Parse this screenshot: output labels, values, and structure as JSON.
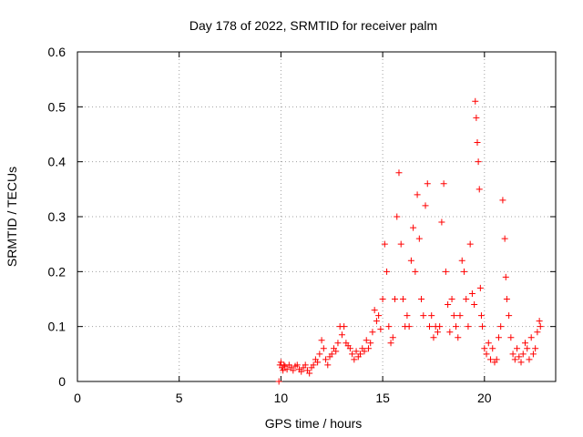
{
  "chart_data": {
    "type": "scatter",
    "title": "Day 178 of 2022, SRMTID for receiver palm",
    "xlabel": "GPS time / hours",
    "ylabel": "SRMTID / TECUs",
    "xlim": [
      0,
      23.5
    ],
    "ylim": [
      0,
      0.6
    ],
    "xticks": [
      0,
      5,
      10,
      15,
      20
    ],
    "xtick_labels": [
      "0",
      "5",
      "10",
      "15",
      "20"
    ],
    "yticks": [
      0,
      0.1,
      0.2,
      0.3,
      0.4,
      0.5,
      0.6
    ],
    "ytick_labels": [
      "0",
      "0.1",
      "0.2",
      "0.3",
      "0.4",
      "0.5",
      "0.6"
    ],
    "grid": true,
    "marker": "plus",
    "color": "#ff0000",
    "series": [
      {
        "name": "SRMTID",
        "points": [
          [
            9.9,
            0.0
          ],
          [
            9.95,
            0.03
          ],
          [
            10.0,
            0.035
          ],
          [
            10.05,
            0.025
          ],
          [
            10.1,
            0.02
          ],
          [
            10.15,
            0.03
          ],
          [
            10.2,
            0.028
          ],
          [
            10.3,
            0.022
          ],
          [
            10.4,
            0.03
          ],
          [
            10.5,
            0.025
          ],
          [
            10.6,
            0.02
          ],
          [
            10.7,
            0.028
          ],
          [
            10.8,
            0.03
          ],
          [
            10.9,
            0.022
          ],
          [
            11.0,
            0.018
          ],
          [
            11.1,
            0.025
          ],
          [
            11.2,
            0.03
          ],
          [
            11.3,
            0.02
          ],
          [
            11.4,
            0.015
          ],
          [
            11.5,
            0.025
          ],
          [
            11.6,
            0.03
          ],
          [
            11.7,
            0.04
          ],
          [
            11.8,
            0.035
          ],
          [
            11.9,
            0.05
          ],
          [
            12.0,
            0.075
          ],
          [
            12.1,
            0.06
          ],
          [
            12.2,
            0.04
          ],
          [
            12.3,
            0.03
          ],
          [
            12.4,
            0.045
          ],
          [
            12.5,
            0.05
          ],
          [
            12.6,
            0.06
          ],
          [
            12.7,
            0.055
          ],
          [
            12.8,
            0.07
          ],
          [
            12.9,
            0.1
          ],
          [
            13.0,
            0.085
          ],
          [
            13.1,
            0.1
          ],
          [
            13.2,
            0.07
          ],
          [
            13.3,
            0.065
          ],
          [
            13.4,
            0.06
          ],
          [
            13.5,
            0.05
          ],
          [
            13.6,
            0.04
          ],
          [
            13.7,
            0.055
          ],
          [
            13.8,
            0.045
          ],
          [
            13.9,
            0.05
          ],
          [
            14.0,
            0.06
          ],
          [
            14.1,
            0.055
          ],
          [
            14.2,
            0.075
          ],
          [
            14.3,
            0.06
          ],
          [
            14.4,
            0.07
          ],
          [
            14.5,
            0.09
          ],
          [
            14.6,
            0.13
          ],
          [
            14.7,
            0.11
          ],
          [
            14.8,
            0.12
          ],
          [
            14.9,
            0.095
          ],
          [
            15.0,
            0.15
          ],
          [
            15.1,
            0.25
          ],
          [
            15.2,
            0.2
          ],
          [
            15.3,
            0.1
          ],
          [
            15.4,
            0.07
          ],
          [
            15.5,
            0.08
          ],
          [
            15.6,
            0.15
          ],
          [
            15.7,
            0.3
          ],
          [
            15.8,
            0.38
          ],
          [
            15.9,
            0.25
          ],
          [
            16.0,
            0.15
          ],
          [
            16.1,
            0.1
          ],
          [
            16.2,
            0.12
          ],
          [
            16.3,
            0.1
          ],
          [
            16.4,
            0.22
          ],
          [
            16.5,
            0.28
          ],
          [
            16.6,
            0.2
          ],
          [
            16.7,
            0.34
          ],
          [
            16.8,
            0.26
          ],
          [
            16.9,
            0.15
          ],
          [
            17.0,
            0.12
          ],
          [
            17.1,
            0.32
          ],
          [
            17.2,
            0.36
          ],
          [
            17.3,
            0.1
          ],
          [
            17.4,
            0.12
          ],
          [
            17.5,
            0.08
          ],
          [
            17.6,
            0.1
          ],
          [
            17.7,
            0.09
          ],
          [
            17.8,
            0.1
          ],
          [
            17.9,
            0.29
          ],
          [
            18.0,
            0.36
          ],
          [
            18.1,
            0.2
          ],
          [
            18.2,
            0.14
          ],
          [
            18.3,
            0.09
          ],
          [
            18.4,
            0.15
          ],
          [
            18.5,
            0.12
          ],
          [
            18.6,
            0.1
          ],
          [
            18.7,
            0.08
          ],
          [
            18.8,
            0.12
          ],
          [
            18.9,
            0.22
          ],
          [
            19.0,
            0.2
          ],
          [
            19.1,
            0.15
          ],
          [
            19.2,
            0.1
          ],
          [
            19.3,
            0.25
          ],
          [
            19.4,
            0.16
          ],
          [
            19.5,
            0.14
          ],
          [
            19.55,
            0.51
          ],
          [
            19.6,
            0.48
          ],
          [
            19.65,
            0.435
          ],
          [
            19.7,
            0.4
          ],
          [
            19.75,
            0.35
          ],
          [
            19.8,
            0.17
          ],
          [
            19.85,
            0.12
          ],
          [
            19.9,
            0.1
          ],
          [
            20.0,
            0.06
          ],
          [
            20.1,
            0.05
          ],
          [
            20.2,
            0.07
          ],
          [
            20.3,
            0.04
          ],
          [
            20.4,
            0.06
          ],
          [
            20.5,
            0.035
          ],
          [
            20.6,
            0.04
          ],
          [
            20.7,
            0.08
          ],
          [
            20.8,
            0.1
          ],
          [
            20.9,
            0.33
          ],
          [
            21.0,
            0.26
          ],
          [
            21.05,
            0.19
          ],
          [
            21.1,
            0.15
          ],
          [
            21.2,
            0.12
          ],
          [
            21.3,
            0.08
          ],
          [
            21.4,
            0.05
          ],
          [
            21.5,
            0.04
          ],
          [
            21.6,
            0.06
          ],
          [
            21.7,
            0.045
          ],
          [
            21.8,
            0.035
          ],
          [
            21.9,
            0.05
          ],
          [
            22.0,
            0.07
          ],
          [
            22.1,
            0.06
          ],
          [
            22.2,
            0.04
          ],
          [
            22.3,
            0.08
          ],
          [
            22.4,
            0.05
          ],
          [
            22.5,
            0.06
          ],
          [
            22.6,
            0.09
          ],
          [
            22.7,
            0.11
          ],
          [
            22.75,
            0.1
          ]
        ]
      }
    ]
  }
}
